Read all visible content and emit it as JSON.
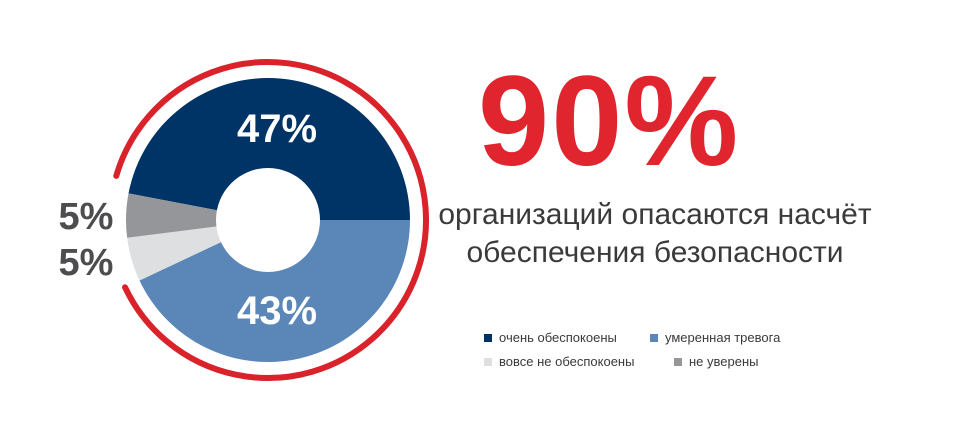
{
  "chart_data": {
    "type": "pie",
    "donut": true,
    "slices": [
      {
        "label": "очень обеспокоены",
        "value": 47,
        "value_label": "47%",
        "color": "#003366"
      },
      {
        "label": "умеренная тревога",
        "value": 43,
        "value_label": "43%",
        "color": "#5b87b8"
      },
      {
        "label": "вовсе не обеспокоены",
        "value": 5,
        "value_label": "5%",
        "color": "#dedfe0"
      },
      {
        "label": "не уверены",
        "value": 5,
        "value_label": "5%",
        "color": "#949699"
      }
    ],
    "legend_placement": "bottom-right",
    "ring_color": "#d9222a"
  },
  "headline": {
    "value": "90%",
    "text_line1": "организаций опасаются насчёт",
    "text_line2": "обеспечения безопасности",
    "color": "#e0252e"
  },
  "legend": [
    {
      "label": "очень обеспокоены",
      "color": "#003366"
    },
    {
      "label": "умеренная тревога",
      "color": "#5b87b8"
    },
    {
      "label": "вовсе не обеспокоены",
      "color": "#dedfe0"
    },
    {
      "label": "не уверены",
      "color": "#949699"
    }
  ]
}
